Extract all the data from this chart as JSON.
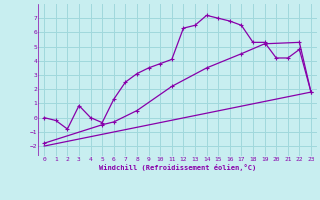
{
  "xlabel": "Windchill (Refroidissement éolien,°C)",
  "background_color": "#c8eef0",
  "grid_color": "#a0d8dc",
  "line_color": "#8800aa",
  "xlim": [
    -0.5,
    23.5
  ],
  "ylim": [
    -2.7,
    8.0
  ],
  "xticks": [
    0,
    1,
    2,
    3,
    4,
    5,
    6,
    7,
    8,
    9,
    10,
    11,
    12,
    13,
    14,
    15,
    16,
    17,
    18,
    19,
    20,
    21,
    22,
    23
  ],
  "yticks": [
    -2,
    -1,
    0,
    1,
    2,
    3,
    4,
    5,
    6,
    7
  ],
  "curve1_x": [
    0,
    1,
    2,
    3,
    4,
    5,
    6,
    7,
    8,
    9,
    10,
    11,
    12,
    13,
    14,
    15,
    16,
    17,
    18,
    19,
    20,
    21,
    22,
    23
  ],
  "curve1_y": [
    0.0,
    -0.2,
    -0.8,
    0.85,
    0.0,
    -0.35,
    1.3,
    2.5,
    3.1,
    3.5,
    3.8,
    4.1,
    6.3,
    6.5,
    7.2,
    7.0,
    6.8,
    6.5,
    5.3,
    5.3,
    4.2,
    4.2,
    4.8,
    1.8
  ],
  "curve2_x": [
    0,
    5,
    6,
    8,
    11,
    14,
    17,
    19,
    22,
    23
  ],
  "curve2_y": [
    -1.8,
    -0.5,
    -0.3,
    0.5,
    2.2,
    3.5,
    4.5,
    5.2,
    5.3,
    1.8
  ],
  "curve3_x": [
    0,
    23
  ],
  "curve3_y": [
    -2.0,
    1.8
  ]
}
